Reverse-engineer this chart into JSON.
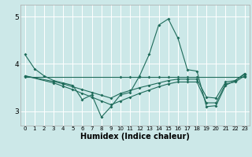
{
  "xlabel": "Humidex (Indice chaleur)",
  "ylabel": "",
  "bg_color": "#cce8e8",
  "grid_color": "#ffffff",
  "line_color": "#1e6b5a",
  "xlim": [
    -0.5,
    23.5
  ],
  "ylim": [
    2.7,
    5.25
  ],
  "yticks": [
    3,
    4,
    5
  ],
  "xticks": [
    0,
    1,
    2,
    3,
    4,
    5,
    6,
    7,
    8,
    9,
    10,
    11,
    12,
    13,
    14,
    15,
    16,
    17,
    18,
    19,
    20,
    21,
    22,
    23
  ],
  "series": [
    {
      "x": [
        0,
        1,
        2,
        3,
        4,
        5,
        6,
        7,
        8,
        9,
        10,
        11,
        12,
        13,
        14,
        15,
        16,
        17,
        18,
        19,
        20,
        21,
        22,
        23
      ],
      "y": [
        4.2,
        3.9,
        3.75,
        3.65,
        3.6,
        3.55,
        3.25,
        3.35,
        2.88,
        3.1,
        3.35,
        3.4,
        3.75,
        4.2,
        4.82,
        4.95,
        4.55,
        3.88,
        3.85,
        3.1,
        3.12,
        3.55,
        3.65,
        3.8
      ]
    },
    {
      "x": [
        0,
        10,
        11,
        12,
        13,
        14,
        15,
        16,
        17,
        18,
        23
      ],
      "y": [
        3.73,
        3.73,
        3.73,
        3.73,
        3.73,
        3.73,
        3.73,
        3.73,
        3.73,
        3.73,
        3.73
      ]
    },
    {
      "x": [
        0,
        3,
        4,
        5,
        6,
        7,
        8,
        9,
        10,
        11,
        12,
        13,
        14,
        15,
        16,
        17,
        18,
        19,
        20,
        21,
        22,
        23
      ],
      "y": [
        3.75,
        3.63,
        3.58,
        3.52,
        3.46,
        3.4,
        3.34,
        3.28,
        3.38,
        3.44,
        3.5,
        3.55,
        3.6,
        3.65,
        3.68,
        3.68,
        3.68,
        3.3,
        3.28,
        3.62,
        3.65,
        3.78
      ]
    },
    {
      "x": [
        0,
        3,
        4,
        5,
        6,
        7,
        8,
        9,
        10,
        11,
        12,
        13,
        14,
        15,
        16,
        17,
        18,
        19,
        20,
        21,
        22,
        23
      ],
      "y": [
        3.75,
        3.6,
        3.53,
        3.46,
        3.38,
        3.3,
        3.22,
        3.14,
        3.22,
        3.3,
        3.38,
        3.45,
        3.52,
        3.58,
        3.62,
        3.62,
        3.62,
        3.18,
        3.18,
        3.58,
        3.62,
        3.75
      ]
    }
  ]
}
